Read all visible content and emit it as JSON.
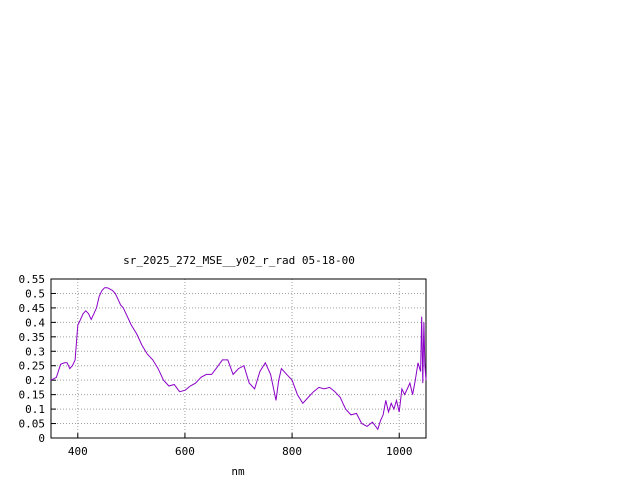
{
  "chart_data": {
    "type": "line",
    "title": "sr_2025_272_MSE__y02_r_rad 05-18-00",
    "xlabel": "nm",
    "ylabel": "",
    "xlim": [
      350,
      1050
    ],
    "ylim": [
      0,
      0.55
    ],
    "grid": true,
    "x_ticks": [
      400,
      600,
      800,
      1000
    ],
    "x_tick_labels": [
      "400",
      "600",
      "800",
      "1000"
    ],
    "y_ticks": [
      0,
      0.05,
      0.1,
      0.15,
      0.2,
      0.25,
      0.3,
      0.35,
      0.4,
      0.45,
      0.5,
      0.55
    ],
    "y_tick_labels": [
      "0",
      "0.05",
      "0.1",
      "0.15",
      "0.2",
      "0.25",
      "0.3",
      "0.35",
      "0.4",
      "0.45",
      "0.5",
      "0.55"
    ],
    "line_color": "#8b00c8",
    "series": [
      {
        "x": [
          350,
          360,
          368,
          375,
          380,
          385,
          390,
          395,
          400,
          405,
          410,
          415,
          420,
          425,
          430,
          435,
          440,
          445,
          450,
          455,
          460,
          465,
          470,
          475,
          480,
          485,
          490,
          495,
          500,
          510,
          520,
          530,
          540,
          550,
          560,
          570,
          580,
          590,
          600,
          610,
          620,
          630,
          640,
          650,
          660,
          670,
          680,
          690,
          700,
          710,
          720,
          730,
          740,
          750,
          760,
          770,
          775,
          780,
          790,
          800,
          810,
          820,
          830,
          840,
          850,
          860,
          870,
          880,
          890,
          900,
          910,
          920,
          930,
          940,
          950,
          960,
          965,
          970,
          975,
          980,
          985,
          990,
          995,
          1000,
          1005,
          1010,
          1015,
          1020,
          1025,
          1030,
          1035,
          1040,
          1042,
          1044,
          1046,
          1048,
          1050
        ],
        "y": [
          0.2,
          0.21,
          0.255,
          0.26,
          0.26,
          0.24,
          0.25,
          0.27,
          0.39,
          0.41,
          0.43,
          0.44,
          0.43,
          0.41,
          0.43,
          0.45,
          0.49,
          0.51,
          0.52,
          0.52,
          0.515,
          0.51,
          0.5,
          0.48,
          0.46,
          0.45,
          0.43,
          0.41,
          0.39,
          0.36,
          0.32,
          0.29,
          0.27,
          0.24,
          0.2,
          0.18,
          0.185,
          0.16,
          0.165,
          0.18,
          0.19,
          0.21,
          0.22,
          0.22,
          0.245,
          0.27,
          0.27,
          0.22,
          0.24,
          0.25,
          0.19,
          0.17,
          0.23,
          0.26,
          0.22,
          0.13,
          0.2,
          0.24,
          0.22,
          0.2,
          0.15,
          0.12,
          0.14,
          0.16,
          0.175,
          0.17,
          0.175,
          0.16,
          0.14,
          0.1,
          0.08,
          0.085,
          0.05,
          0.04,
          0.055,
          0.03,
          0.06,
          0.08,
          0.13,
          0.09,
          0.12,
          0.1,
          0.13,
          0.09,
          0.17,
          0.15,
          0.17,
          0.19,
          0.15,
          0.2,
          0.26,
          0.23,
          0.42,
          0.19,
          0.4,
          0.25,
          0.2
        ]
      }
    ]
  }
}
